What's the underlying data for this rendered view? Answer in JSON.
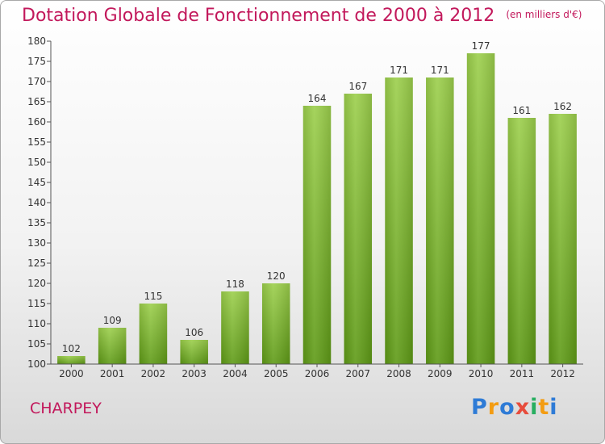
{
  "header": {
    "title": "Dotation Globale de Fonctionnement de 2000 à 2012",
    "units": "(en milliers d'€)"
  },
  "footer": {
    "town": "CHARPEY",
    "logo": {
      "letters": [
        "P",
        "r",
        "o",
        "x",
        "i",
        "t",
        "i"
      ],
      "colors": [
        "#2e7bd6",
        "#f39c12",
        "#2e7bd6",
        "#e74c3c",
        "#27ae60",
        "#f39c12",
        "#2e7bd6"
      ]
    }
  },
  "colors": {
    "bar_light": "#9ccf4c",
    "bar_dark": "#5e9a16",
    "title": "#c2185b",
    "axis_text": "#333333"
  },
  "chart_data": {
    "type": "bar",
    "categories": [
      "2000",
      "2001",
      "2002",
      "2003",
      "2004",
      "2005",
      "2006",
      "2007",
      "2008",
      "2009",
      "2010",
      "2011",
      "2012"
    ],
    "values": [
      102,
      109,
      115,
      106,
      118,
      120,
      164,
      167,
      171,
      171,
      177,
      161,
      162
    ],
    "data_labels": [
      "102",
      "109",
      "115",
      "106",
      "118",
      "120",
      "164",
      "167",
      "171",
      "171",
      "177",
      "161",
      "162"
    ],
    "ylim": [
      100,
      180
    ],
    "ytick_step": 5,
    "grid": false
  }
}
